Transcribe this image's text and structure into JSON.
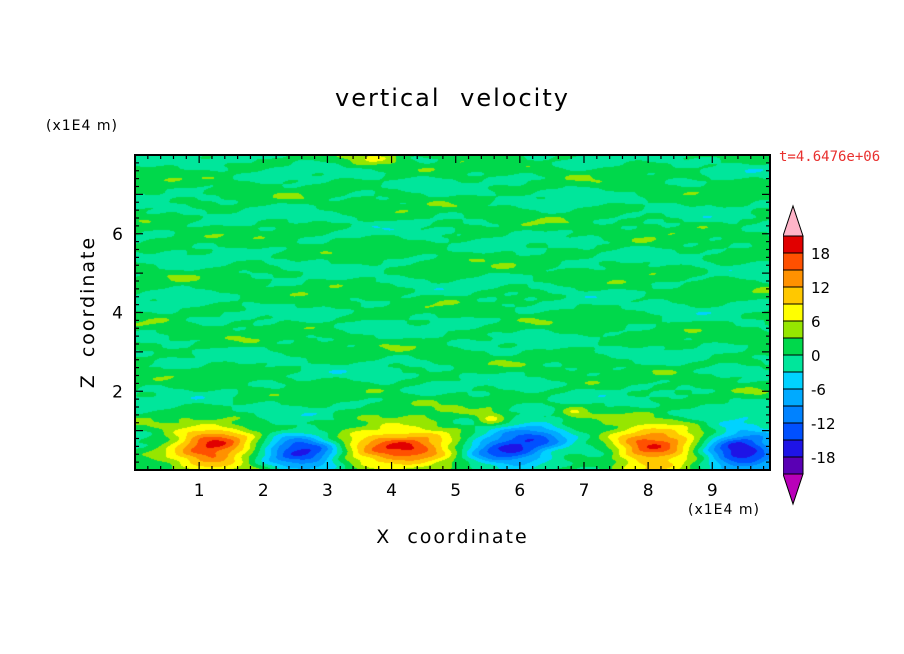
{
  "title": "vertical velocity",
  "time_label": "t=4.6476e+06",
  "axes": {
    "x_label": "X coordinate",
    "y_label": "Z coordinate",
    "x_unit_label": "(x1E4 m)",
    "y_unit_label": "(x1E4 m)"
  },
  "colors": {
    "time_label": "#e8302e",
    "frame": "#000000",
    "background": "#ffffff"
  },
  "chart_data": {
    "type": "heatmap",
    "subtype": "filled-contour",
    "title": "vertical velocity",
    "xlabel": "X coordinate",
    "ylabel": "Z coordinate",
    "x_unit": "(x1E4 m)",
    "y_unit": "(x1E4 m)",
    "time": "t=4.6476e+06",
    "xlim": [
      0,
      9.9
    ],
    "zlim": [
      0,
      8
    ],
    "x_ticks": [
      1,
      2,
      3,
      4,
      5,
      6,
      7,
      8,
      9
    ],
    "z_ticks": [
      2,
      4,
      6
    ],
    "x_minor_step": 0.2,
    "z_minor_step": 0.2,
    "grid": false,
    "legend_position": "colorbar-right",
    "levels_min": -21,
    "levels_max": 21,
    "levels_step": 3,
    "band_colors": [
      "#5a00b4",
      "#1e14e6",
      "#0050ff",
      "#0082ff",
      "#00aaff",
      "#00d2ff",
      "#00e69b",
      "#00d84b",
      "#96e600",
      "#ffff00",
      "#ffc800",
      "#ff9100",
      "#ff5000",
      "#e10000"
    ],
    "under_color": "#b900b9",
    "over_color": "#ffb4c8",
    "colorbar_tick_values": [
      18,
      12,
      6,
      0,
      -6,
      -12,
      -18
    ],
    "background_offset": 0.4,
    "background_waves": [
      {
        "amp": 1.15,
        "kx": 0.9,
        "kz": 5.1,
        "phase": 1.3
      },
      {
        "amp": 0.95,
        "kx": 1.9,
        "kz": -7.3,
        "phase": 4.1
      },
      {
        "amp": 0.75,
        "kx": 3.1,
        "kz": 9.7,
        "phase": 2.2
      },
      {
        "amp": 0.6,
        "kx": 4.3,
        "kz": -12.9,
        "phase": 5.0
      },
      {
        "amp": 0.45,
        "kx": 6.7,
        "kz": 15.9,
        "phase": 0.7
      },
      {
        "amp": 0.35,
        "kx": 9.1,
        "kz": -21.3,
        "phase": 3.3
      }
    ],
    "features": [
      {
        "x": 1.2,
        "z": 0.55,
        "amp": 18.5,
        "sx": 0.45,
        "sz": 0.38
      },
      {
        "x": 2.5,
        "z": 0.5,
        "amp": -14.0,
        "sx": 0.36,
        "sz": 0.34
      },
      {
        "x": 2.95,
        "z": 0.42,
        "amp": -7.0,
        "sx": 0.28,
        "sz": 0.26
      },
      {
        "x": 4.2,
        "z": 0.55,
        "amp": 16.0,
        "sx": 0.68,
        "sz": 0.44
      },
      {
        "x": 5.45,
        "z": 0.45,
        "amp": -8.0,
        "sx": 0.45,
        "sz": 0.3
      },
      {
        "x": 5.95,
        "z": 0.55,
        "amp": -11.0,
        "sx": 0.42,
        "sz": 0.36
      },
      {
        "x": 6.35,
        "z": 0.95,
        "amp": -6.0,
        "sx": 0.32,
        "sz": 0.26
      },
      {
        "x": 5.55,
        "z": 1.3,
        "amp": 7.0,
        "sx": 0.16,
        "sz": 0.13
      },
      {
        "x": 6.85,
        "z": 1.45,
        "amp": 5.0,
        "sx": 0.14,
        "sz": 0.11
      },
      {
        "x": 7.35,
        "z": 0.4,
        "amp": -6.0,
        "sx": 0.32,
        "sz": 0.26
      },
      {
        "x": 8.05,
        "z": 0.55,
        "amp": 17.5,
        "sx": 0.55,
        "sz": 0.4
      },
      {
        "x": 9.45,
        "z": 0.5,
        "amp": -17.5,
        "sx": 0.42,
        "sz": 0.4
      },
      {
        "x": 3.7,
        "z": 7.9,
        "amp": 5.0,
        "sx": 0.3,
        "sz": 0.15
      }
    ]
  }
}
